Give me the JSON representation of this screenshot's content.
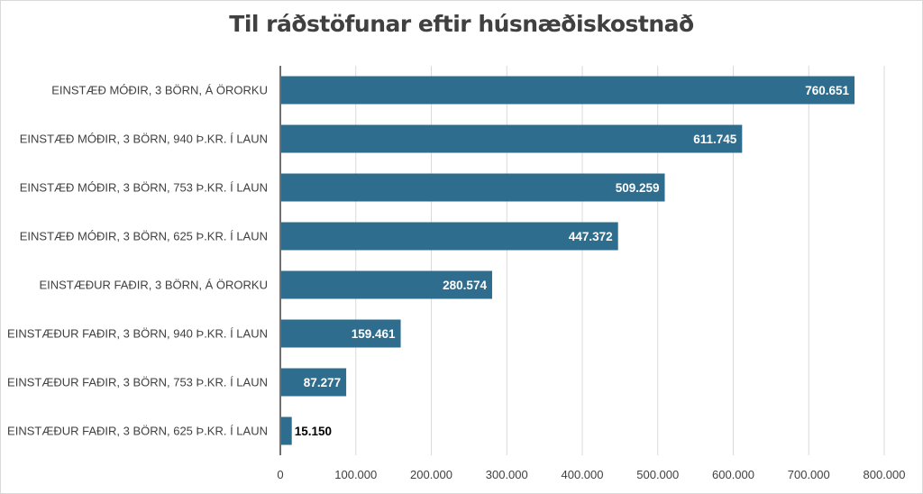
{
  "chart_data": {
    "type": "bar",
    "orientation": "horizontal",
    "title": "Til ráðstöfunar eftir húsnæðiskostnað",
    "xlabel": "",
    "ylabel": "",
    "categories": [
      "EINSTÆÐ MÓÐIR, 3 BÖRN, Á ÖRORKU",
      "EINSTÆÐ MÓÐIR, 3 BÖRN, 940 Þ.KR. Í LAUN",
      "EINSTÆÐ MÓÐIR, 3 BÖRN, 753 Þ.KR. Í LAUN",
      "EINSTÆÐ MÓÐIR, 3 BÖRN, 625 Þ.KR. Í LAUN",
      "EINSTÆÐUR FAÐIR, 3 BÖRN, Á ÖRORKU",
      "EINSTÆÐUR FAÐIR, 3 BÖRN, 940 Þ.KR. Í LAUN",
      "EINSTÆÐUR FAÐIR, 3 BÖRN, 753 Þ.KR. Í LAUN",
      "EINSTÆÐUR FAÐIR, 3 BÖRN, 625 Þ.KR. Í LAUN"
    ],
    "values": [
      760651,
      611745,
      509259,
      447372,
      280574,
      159461,
      87277,
      15150
    ],
    "value_labels": [
      "760.651",
      "611.745",
      "509.259",
      "447.372",
      "280.574",
      "159.461",
      "87.277",
      "15.150"
    ],
    "xlim": [
      0,
      800000
    ],
    "ticks": [
      0,
      100000,
      200000,
      300000,
      400000,
      500000,
      600000,
      700000,
      800000
    ],
    "tick_labels": [
      "0",
      "100.000",
      "200.000",
      "300.000",
      "400.000",
      "500.000",
      "600.000",
      "700.000",
      "800.000"
    ],
    "grid": true,
    "legend": "none",
    "bar_color": "#2e6d8e",
    "grid_color": "#d9d9d9",
    "axis_color": "#404040"
  }
}
